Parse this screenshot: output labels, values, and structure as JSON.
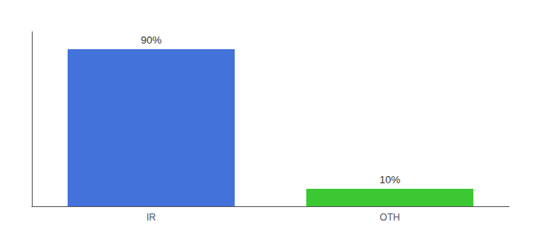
{
  "chart_data": {
    "type": "bar",
    "categories": [
      "IR",
      "OTH"
    ],
    "values": [
      90,
      10
    ],
    "value_labels": [
      "90%",
      "10%"
    ],
    "colors": [
      "#4472db",
      "#3cc832"
    ],
    "ylim": [
      0,
      100
    ],
    "data_labels": true,
    "tick_labels": "x",
    "grid": false
  }
}
